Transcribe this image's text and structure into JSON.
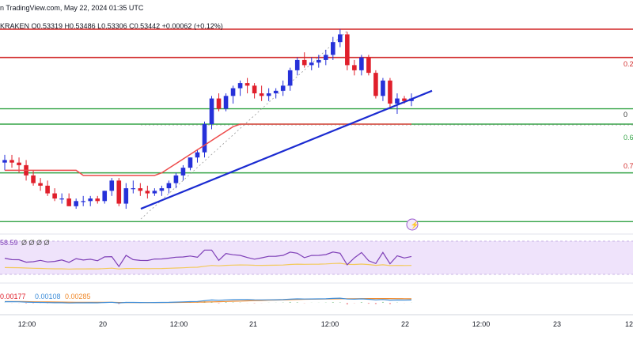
{
  "header": {
    "line1": "n TradingView.com, May 22, 2024 01:35 UTC",
    "line2": "KRAKEN O0.53319 H0.53486 L0.53306 C0.53442 +0.00062 (+0.12%)"
  },
  "rsi": {
    "value_label": "58.59",
    "extra_label": "Ø Ø Ø Ø"
  },
  "macd": {
    "labels": [
      "0.00177",
      "0.00108",
      "0.00285"
    ]
  },
  "colors": {
    "bull": "#2631d9",
    "bear": "#e01f2b",
    "hline_red": "#d22b2b",
    "hline_green": "#33a345",
    "trend": "#1b2bd1",
    "ma": "#ee4b4b",
    "rsi_line": "#7e3fb7",
    "rsi_ma": "#f3c95a",
    "rsi_band": "#efe3fb",
    "macd_line": "#3f8ed9",
    "macd_signal": "#f08a2c"
  },
  "chart_data": {
    "type": "candlestick",
    "x_ticks": [
      "12:00",
      "20",
      "12:00",
      "21",
      "12:00",
      "22",
      "12:00",
      "23",
      "12"
    ],
    "fib_labels": [
      "0.2",
      "0",
      "0.6",
      "0.7"
    ],
    "price_lines": {
      "red": [
        0.5346,
        0.5335
      ],
      "green": [
        0.5315,
        0.5309,
        0.529,
        0.5271
      ]
    },
    "trendline": {
      "from": 0.5276,
      "to": 0.5322
    },
    "candles": [
      [
        0.5294,
        0.5297,
        0.5291,
        0.5295
      ],
      [
        0.5295,
        0.5297,
        0.5292,
        0.5294
      ],
      [
        0.5294,
        0.5296,
        0.529,
        0.5293
      ],
      [
        0.5293,
        0.5295,
        0.5287,
        0.5289
      ],
      [
        0.5289,
        0.5291,
        0.5285,
        0.5286
      ],
      [
        0.5286,
        0.5288,
        0.5283,
        0.5285
      ],
      [
        0.5285,
        0.5287,
        0.5281,
        0.5282
      ],
      [
        0.5282,
        0.5284,
        0.5279,
        0.528
      ],
      [
        0.528,
        0.5282,
        0.5278,
        0.528
      ],
      [
        0.528,
        0.5282,
        0.5277,
        0.5277
      ],
      [
        0.5277,
        0.528,
        0.5276,
        0.5279
      ],
      [
        0.5279,
        0.5281,
        0.5277,
        0.5279
      ],
      [
        0.5279,
        0.5281,
        0.5277,
        0.528
      ],
      [
        0.528,
        0.5281,
        0.5278,
        0.5279
      ],
      [
        0.5279,
        0.5283,
        0.5278,
        0.5283
      ],
      [
        0.5283,
        0.5288,
        0.5281,
        0.5287
      ],
      [
        0.5287,
        0.5288,
        0.5277,
        0.5278
      ],
      [
        0.5278,
        0.5286,
        0.5276,
        0.5284
      ],
      [
        0.5284,
        0.5287,
        0.5282,
        0.5284
      ],
      [
        0.5284,
        0.5286,
        0.5281,
        0.5283
      ],
      [
        0.5283,
        0.5285,
        0.528,
        0.5282
      ],
      [
        0.5282,
        0.5284,
        0.5281,
        0.5283
      ],
      [
        0.5283,
        0.5285,
        0.5281,
        0.5284
      ],
      [
        0.5284,
        0.5287,
        0.5282,
        0.5286
      ],
      [
        0.5286,
        0.529,
        0.5284,
        0.5289
      ],
      [
        0.5289,
        0.5293,
        0.5287,
        0.5292
      ],
      [
        0.5292,
        0.5296,
        0.5291,
        0.5296
      ],
      [
        0.5296,
        0.5299,
        0.5294,
        0.5298
      ],
      [
        0.5298,
        0.531,
        0.5296,
        0.5309
      ],
      [
        0.5309,
        0.532,
        0.5307,
        0.5319
      ],
      [
        0.5319,
        0.5321,
        0.5314,
        0.5315
      ],
      [
        0.5315,
        0.5321,
        0.5314,
        0.532
      ],
      [
        0.532,
        0.5324,
        0.5317,
        0.5323
      ],
      [
        0.5323,
        0.5326,
        0.532,
        0.5325
      ],
      [
        0.5325,
        0.5327,
        0.5321,
        0.5324
      ],
      [
        0.5324,
        0.5325,
        0.5319,
        0.5321
      ],
      [
        0.5321,
        0.5324,
        0.5318,
        0.532
      ],
      [
        0.532,
        0.5323,
        0.5318,
        0.5321
      ],
      [
        0.5321,
        0.5323,
        0.5319,
        0.5322
      ],
      [
        0.5322,
        0.5326,
        0.532,
        0.5324
      ],
      [
        0.5324,
        0.5331,
        0.5322,
        0.533
      ],
      [
        0.533,
        0.5335,
        0.5328,
        0.5334
      ],
      [
        0.5334,
        0.5337,
        0.5331,
        0.5332
      ],
      [
        0.5332,
        0.5335,
        0.533,
        0.5333
      ],
      [
        0.5333,
        0.5336,
        0.5331,
        0.5334
      ],
      [
        0.5334,
        0.5338,
        0.5332,
        0.5336
      ],
      [
        0.5336,
        0.5343,
        0.5334,
        0.5341
      ],
      [
        0.5341,
        0.5346,
        0.5339,
        0.5344
      ],
      [
        0.5344,
        0.5345,
        0.533,
        0.5332
      ],
      [
        0.5332,
        0.5334,
        0.5328,
        0.533
      ],
      [
        0.533,
        0.5336,
        0.5328,
        0.5335
      ],
      [
        0.5335,
        0.5336,
        0.5328,
        0.5329
      ],
      [
        0.5329,
        0.533,
        0.5319,
        0.532
      ],
      [
        0.532,
        0.5327,
        0.5318,
        0.5326
      ],
      [
        0.5326,
        0.5327,
        0.5315,
        0.5317
      ],
      [
        0.5317,
        0.5321,
        0.5313,
        0.5319
      ],
      [
        0.5319,
        0.532,
        0.5317,
        0.5318
      ],
      [
        0.5318,
        0.5321,
        0.5316,
        0.5319
      ]
    ]
  }
}
